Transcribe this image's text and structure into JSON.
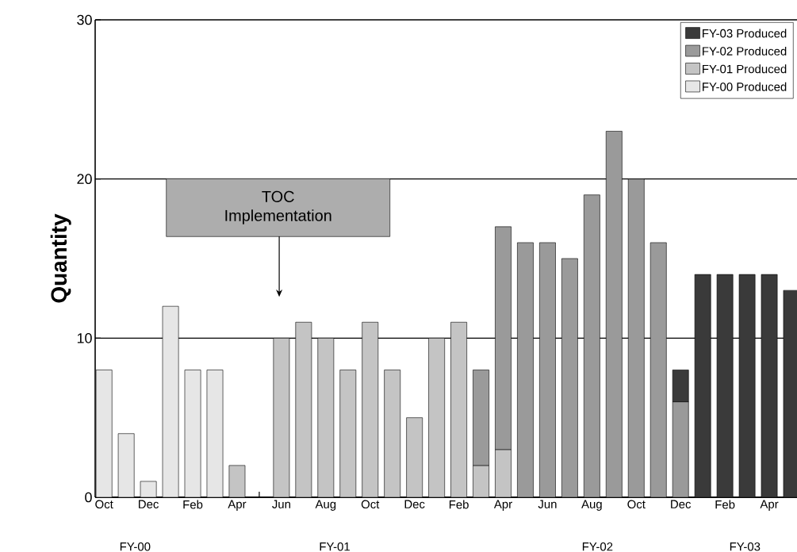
{
  "chart_data": {
    "type": "bar",
    "stacked": true,
    "ylabel": "Quantity",
    "categories": [
      "Oct",
      null,
      "Dec",
      null,
      "Feb",
      null,
      "Apr",
      null,
      "Jun",
      null,
      "Aug",
      null,
      "Oct",
      null,
      "Dec",
      null,
      "Feb",
      null,
      "Apr",
      null,
      "Jun",
      null,
      "Aug",
      null,
      "Oct",
      null,
      "Dec",
      null,
      "Feb",
      null,
      "Apr",
      null
    ],
    "series": [
      {
        "name": "FY-00 Produced",
        "color": "#e6e6e6",
        "values": [
          8,
          4,
          1,
          12,
          8,
          8,
          null,
          null,
          null,
          null,
          null,
          null,
          null,
          null,
          null,
          null,
          null,
          null,
          null,
          null,
          null,
          null,
          null,
          null,
          null,
          null,
          null,
          null,
          null,
          null,
          null,
          null
        ]
      },
      {
        "name": "FY-01 Produced",
        "color": "#c4c4c4",
        "values": [
          null,
          null,
          null,
          null,
          null,
          null,
          2,
          null,
          10,
          11,
          10,
          8,
          11,
          8,
          5,
          10,
          11,
          2,
          3,
          null,
          null,
          null,
          null,
          null,
          null,
          null,
          null,
          null,
          null,
          null,
          null,
          null
        ]
      },
      {
        "name": "FY-02 Produced",
        "color": "#9a9a9a",
        "values": [
          null,
          null,
          null,
          null,
          null,
          null,
          null,
          null,
          null,
          null,
          null,
          null,
          null,
          null,
          null,
          null,
          null,
          6,
          14,
          16,
          16,
          15,
          19,
          23,
          20,
          16,
          6,
          null,
          null,
          null,
          null,
          null
        ]
      },
      {
        "name": "FY-03 Produced",
        "color": "#3a3a3a",
        "values": [
          null,
          null,
          null,
          null,
          null,
          null,
          null,
          null,
          null,
          null,
          null,
          null,
          null,
          null,
          null,
          null,
          null,
          null,
          null,
          null,
          null,
          null,
          null,
          null,
          null,
          null,
          2,
          14,
          14,
          14,
          14,
          13
        ]
      }
    ],
    "ylim": [
      0,
      30
    ],
    "yticks": [
      0,
      10,
      20,
      30
    ],
    "grid": "y",
    "legend": "top right",
    "annotations": [
      "TOC Implementation",
      "FY-00",
      "FY-01",
      "FY-02",
      "FY-03"
    ]
  }
}
